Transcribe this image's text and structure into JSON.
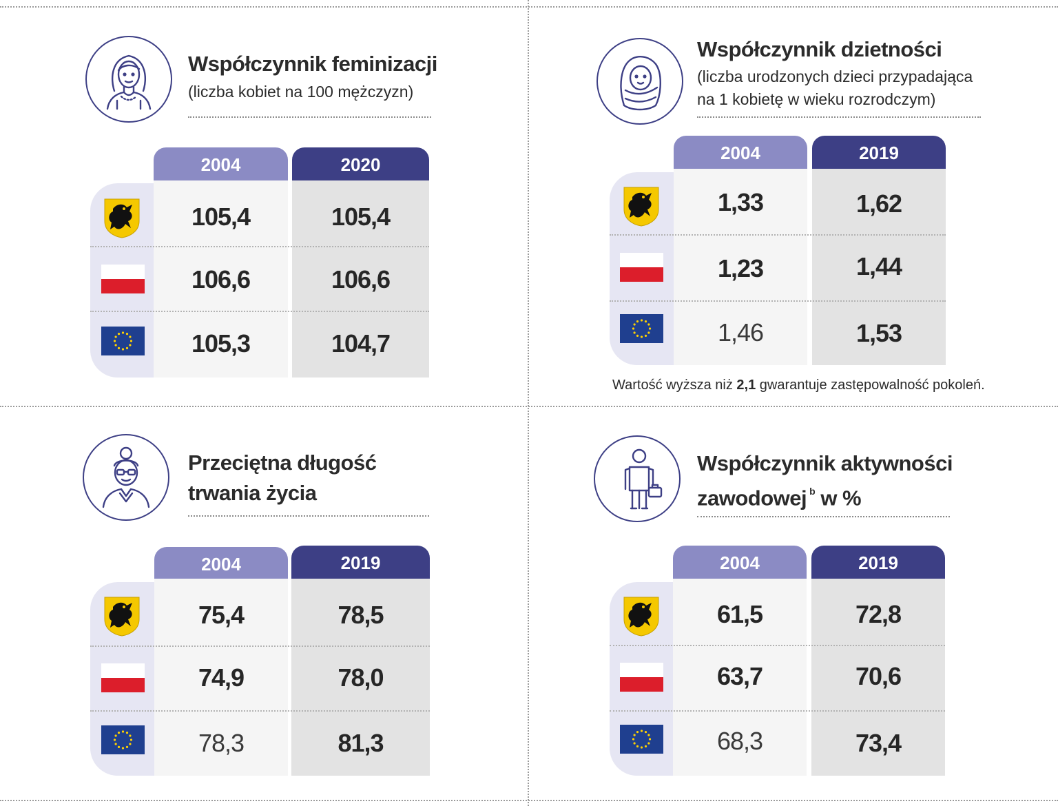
{
  "colors": {
    "header_old": "#8b8bc4",
    "header_new": "#3d3f85",
    "flag_column": "#e6e6f3",
    "value_col_old": "#f5f5f5",
    "value_col_new": "#e3e3e3",
    "poland_red": "#dc1e2b",
    "eu_blue": "#1f3f8f",
    "eu_star": "#ffd100"
  },
  "row_flags": [
    "pomorskie-coat-of-arms",
    "poland-flag",
    "eu-flag"
  ],
  "panels": [
    {
      "title": "Współczynnik feminizacji",
      "subtitle_lines": [
        "(liczba kobiet na 100 mężczyzn)"
      ],
      "icon": "woman-icon",
      "years": [
        "2004",
        "2020"
      ],
      "values": [
        [
          "105,4",
          "105,4"
        ],
        [
          "106,6",
          "106,6"
        ],
        [
          "105,3",
          "104,7"
        ]
      ]
    },
    {
      "title": "Współczynnik dzietności",
      "subtitle_lines": [
        "(liczba urodzonych dzieci przypadająca",
        "na 1 kobietę w wieku rozrodczym)"
      ],
      "icon": "baby-icon",
      "years": [
        "2004",
        "2019"
      ],
      "values": [
        [
          "1,33",
          "1,62"
        ],
        [
          "1,23",
          "1,44"
        ],
        [
          "1,46",
          "1,53"
        ]
      ]
    },
    {
      "title_lines": [
        "Przeciętna długość",
        "trwania życia"
      ],
      "icon": "elderly-woman-icon",
      "years": [
        "2004",
        "2019"
      ],
      "values": [
        [
          "75,4",
          "78,5"
        ],
        [
          "74,9",
          "78,0"
        ],
        [
          "78,3",
          "81,3"
        ]
      ]
    },
    {
      "title_lines": [
        "Współczynnik aktywności",
        "zawodowej"
      ],
      "title_sup": "b",
      "title_suffix": " w %",
      "icon": "worker-icon",
      "years": [
        "2004",
        "2019"
      ],
      "values": [
        [
          "61,5",
          "72,8"
        ],
        [
          "63,7",
          "70,6"
        ],
        [
          "68,3",
          "73,4"
        ]
      ]
    }
  ],
  "note": {
    "before": "Wartość wyższa niż ",
    "bold": "2,1",
    "after": " gwarantuje zastępowalność pokoleń."
  },
  "chart_data": [
    {
      "type": "table",
      "title": "Współczynnik feminizacji",
      "subtitle": "(liczba kobiet na 100 mężczyzn)",
      "rows": [
        "Pomorskie",
        "Polska",
        "UE"
      ],
      "columns": [
        "2004",
        "2020"
      ],
      "values": [
        [
          105.4,
          105.4
        ],
        [
          106.6,
          106.6
        ],
        [
          105.3,
          104.7
        ]
      ]
    },
    {
      "type": "table",
      "title": "Współczynnik dzietności",
      "subtitle": "(liczba urodzonych dzieci przypadająca na 1 kobietę w wieku rozrodczym)",
      "rows": [
        "Pomorskie",
        "Polska",
        "UE"
      ],
      "columns": [
        "2004",
        "2019"
      ],
      "values": [
        [
          1.33,
          1.62
        ],
        [
          1.23,
          1.44
        ],
        [
          1.46,
          1.53
        ]
      ]
    },
    {
      "type": "table",
      "title": "Przeciętna długość trwania życia",
      "rows": [
        "Pomorskie",
        "Polska",
        "UE"
      ],
      "columns": [
        "2004",
        "2019"
      ],
      "values": [
        [
          75.4,
          78.5
        ],
        [
          74.9,
          78.0
        ],
        [
          78.3,
          81.3
        ]
      ]
    },
    {
      "type": "table",
      "title": "Współczynnik aktywności zawodowej b w %",
      "rows": [
        "Pomorskie",
        "Polska",
        "UE"
      ],
      "columns": [
        "2004",
        "2019"
      ],
      "values": [
        [
          61.5,
          72.8
        ],
        [
          63.7,
          70.6
        ],
        [
          68.3,
          73.4
        ]
      ]
    }
  ]
}
